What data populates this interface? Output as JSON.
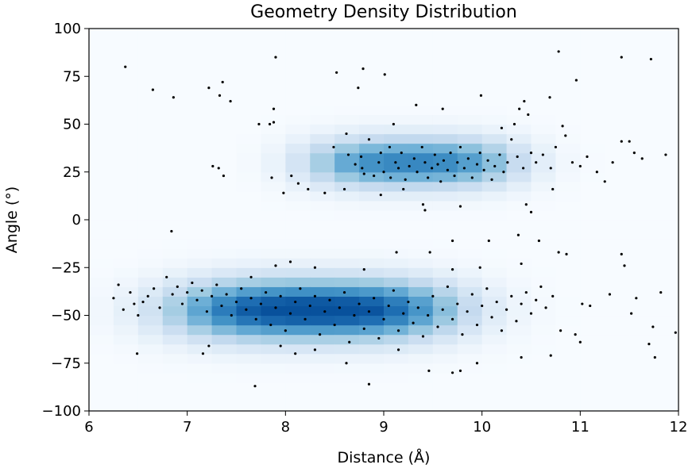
{
  "chart_data": {
    "type": "heatmap",
    "title": "Geometry Density Distribution",
    "xlabel": "Distance (Å)",
    "ylabel": "Angle (°)",
    "xlim": [
      6,
      12
    ],
    "ylim": [
      -100,
      100
    ],
    "x_ticks": [
      6,
      7,
      8,
      9,
      10,
      11,
      12
    ],
    "y_ticks": [
      -100,
      -75,
      -50,
      -25,
      0,
      25,
      50,
      75,
      100
    ],
    "x_tick_labels": [
      "6",
      "7",
      "8",
      "9",
      "10",
      "11",
      "12"
    ],
    "y_tick_labels": [
      "−100",
      "−75",
      "−50",
      "−25",
      "0",
      "25",
      "50",
      "75",
      "100"
    ],
    "grid": false,
    "colormap": "Blues",
    "point_color": "#000000",
    "density_clusters": [
      {
        "center": [
          8.3,
          -47
        ],
        "spread": [
          1.15,
          11
        ],
        "weight": 1.0
      },
      {
        "center": [
          9.3,
          30
        ],
        "spread": [
          0.85,
          9
        ],
        "weight": 0.75
      }
    ],
    "points": [
      [
        6.37,
        80
      ],
      [
        6.65,
        68
      ],
      [
        6.86,
        64
      ],
      [
        7.22,
        69
      ],
      [
        7.33,
        65
      ],
      [
        7.36,
        72
      ],
      [
        7.44,
        62
      ],
      [
        7.9,
        85
      ],
      [
        8.52,
        77
      ],
      [
        8.79,
        79
      ],
      [
        9.01,
        76
      ],
      [
        8.74,
        69
      ],
      [
        10.78,
        88
      ],
      [
        10.96,
        73
      ],
      [
        11.42,
        85
      ],
      [
        11.72,
        84
      ],
      [
        7.73,
        50
      ],
      [
        7.84,
        50
      ],
      [
        7.88,
        51
      ],
      [
        7.88,
        58
      ],
      [
        7.26,
        28
      ],
      [
        7.32,
        27
      ],
      [
        7.37,
        23
      ],
      [
        7.86,
        22
      ],
      [
        7.98,
        14
      ],
      [
        8.06,
        23
      ],
      [
        8.13,
        19
      ],
      [
        8.23,
        16
      ],
      [
        8.4,
        14
      ],
      [
        8.6,
        16
      ],
      [
        8.49,
        38
      ],
      [
        8.62,
        45
      ],
      [
        8.85,
        42
      ],
      [
        8.9,
        23
      ],
      [
        8.64,
        34
      ],
      [
        8.71,
        29
      ],
      [
        8.77,
        33
      ],
      [
        8.78,
        27
      ],
      [
        8.8,
        24
      ],
      [
        8.95,
        30
      ],
      [
        8.97,
        35
      ],
      [
        9.0,
        25
      ],
      [
        9.06,
        38
      ],
      [
        9.07,
        22
      ],
      [
        9.12,
        30
      ],
      [
        9.15,
        27
      ],
      [
        9.18,
        35
      ],
      [
        9.22,
        21
      ],
      [
        9.26,
        28
      ],
      [
        9.31,
        32
      ],
      [
        9.34,
        25
      ],
      [
        9.39,
        38
      ],
      [
        9.42,
        30
      ],
      [
        9.45,
        22
      ],
      [
        9.49,
        27
      ],
      [
        9.52,
        34
      ],
      [
        9.55,
        29
      ],
      [
        9.58,
        20
      ],
      [
        9.61,
        31
      ],
      [
        9.65,
        26
      ],
      [
        9.68,
        35
      ],
      [
        9.72,
        23
      ],
      [
        9.75,
        30
      ],
      [
        9.78,
        38
      ],
      [
        9.82,
        27
      ],
      [
        9.86,
        32
      ],
      [
        9.9,
        22
      ],
      [
        9.95,
        29
      ],
      [
        9.98,
        35
      ],
      [
        10.02,
        26
      ],
      [
        10.06,
        31
      ],
      [
        10.1,
        21
      ],
      [
        10.13,
        28
      ],
      [
        10.18,
        34
      ],
      [
        10.22,
        25
      ],
      [
        10.26,
        30
      ],
      [
        10.3,
        42
      ],
      [
        10.36,
        33
      ],
      [
        10.42,
        27
      ],
      [
        10.47,
        55
      ],
      [
        10.5,
        35
      ],
      [
        10.55,
        30
      ],
      [
        10.62,
        34
      ],
      [
        10.7,
        27
      ],
      [
        10.75,
        38
      ],
      [
        10.82,
        49
      ],
      [
        10.85,
        44
      ],
      [
        10.92,
        30
      ],
      [
        11.0,
        28
      ],
      [
        11.07,
        33
      ],
      [
        11.17,
        25
      ],
      [
        11.25,
        20
      ],
      [
        11.33,
        30
      ],
      [
        11.42,
        41
      ],
      [
        11.5,
        41
      ],
      [
        11.55,
        35
      ],
      [
        11.63,
        32
      ],
      [
        11.87,
        34
      ],
      [
        9.1,
        50
      ],
      [
        9.33,
        60
      ],
      [
        9.6,
        58
      ],
      [
        9.99,
        65
      ],
      [
        10.2,
        48
      ],
      [
        10.33,
        50
      ],
      [
        10.38,
        58
      ],
      [
        10.43,
        62
      ],
      [
        10.69,
        64
      ],
      [
        8.97,
        13
      ],
      [
        9.2,
        16
      ],
      [
        9.4,
        8
      ],
      [
        9.42,
        5
      ],
      [
        9.78,
        7
      ],
      [
        10.45,
        8
      ],
      [
        10.5,
        4
      ],
      [
        10.72,
        16
      ],
      [
        6.25,
        -41
      ],
      [
        6.3,
        -34
      ],
      [
        6.35,
        -47
      ],
      [
        6.42,
        -38
      ],
      [
        6.46,
        -44
      ],
      [
        6.5,
        -50
      ],
      [
        6.55,
        -43
      ],
      [
        6.6,
        -40
      ],
      [
        6.66,
        -36
      ],
      [
        6.72,
        -46
      ],
      [
        6.79,
        -30
      ],
      [
        6.85,
        -39
      ],
      [
        6.9,
        -35
      ],
      [
        6.95,
        -44
      ],
      [
        7.0,
        -38
      ],
      [
        7.05,
        -33
      ],
      [
        7.1,
        -42
      ],
      [
        7.15,
        -37
      ],
      [
        7.2,
        -48
      ],
      [
        7.25,
        -40
      ],
      [
        7.3,
        -34
      ],
      [
        7.35,
        -45
      ],
      [
        7.4,
        -39
      ],
      [
        7.45,
        -50
      ],
      [
        7.5,
        -43
      ],
      [
        7.55,
        -36
      ],
      [
        7.6,
        -47
      ],
      [
        7.65,
        -41
      ],
      [
        7.7,
        -52
      ],
      [
        7.75,
        -44
      ],
      [
        7.8,
        -38
      ],
      [
        7.85,
        -55
      ],
      [
        7.9,
        -46
      ],
      [
        7.95,
        -40
      ],
      [
        8.0,
        -58
      ],
      [
        8.05,
        -49
      ],
      [
        8.1,
        -43
      ],
      [
        8.15,
        -36
      ],
      [
        8.2,
        -52
      ],
      [
        8.25,
        -45
      ],
      [
        8.3,
        -40
      ],
      [
        8.35,
        -60
      ],
      [
        8.4,
        -48
      ],
      [
        8.45,
        -42
      ],
      [
        8.5,
        -55
      ],
      [
        8.55,
        -46
      ],
      [
        8.6,
        -38
      ],
      [
        8.65,
        -64
      ],
      [
        8.7,
        -50
      ],
      [
        8.75,
        -44
      ],
      [
        8.8,
        -57
      ],
      [
        8.85,
        -48
      ],
      [
        8.9,
        -41
      ],
      [
        8.95,
        -62
      ],
      [
        9.0,
        -52
      ],
      [
        9.05,
        -45
      ],
      [
        9.1,
        -37
      ],
      [
        9.15,
        -58
      ],
      [
        9.2,
        -49
      ],
      [
        9.25,
        -43
      ],
      [
        9.3,
        -54
      ],
      [
        9.35,
        -46
      ],
      [
        9.4,
        -61
      ],
      [
        9.45,
        -50
      ],
      [
        9.5,
        -40
      ],
      [
        9.55,
        -56
      ],
      [
        9.6,
        -47
      ],
      [
        9.65,
        -35
      ],
      [
        9.7,
        -52
      ],
      [
        9.75,
        -44
      ],
      [
        9.8,
        -60
      ],
      [
        9.85,
        -48
      ],
      [
        9.9,
        -39
      ],
      [
        9.95,
        -55
      ],
      [
        10.0,
        -45
      ],
      [
        10.05,
        -36
      ],
      [
        10.1,
        -51
      ],
      [
        10.15,
        -43
      ],
      [
        10.2,
        -58
      ],
      [
        10.25,
        -47
      ],
      [
        10.3,
        -40
      ],
      [
        10.35,
        -53
      ],
      [
        10.4,
        -44
      ],
      [
        10.45,
        -38
      ],
      [
        10.5,
        -49
      ],
      [
        10.55,
        -42
      ],
      [
        10.6,
        -35
      ],
      [
        10.65,
        -46
      ],
      [
        10.72,
        -40
      ],
      [
        10.8,
        -58
      ],
      [
        10.95,
        -60
      ],
      [
        11.02,
        -44
      ],
      [
        11.1,
        -45
      ],
      [
        11.3,
        -39
      ],
      [
        11.42,
        -18
      ],
      [
        11.45,
        -24
      ],
      [
        11.52,
        -49
      ],
      [
        11.57,
        -41
      ],
      [
        11.7,
        -65
      ],
      [
        11.74,
        -56
      ],
      [
        11.76,
        -72
      ],
      [
        11.82,
        -38
      ],
      [
        11.97,
        -59
      ],
      [
        6.49,
        -70
      ],
      [
        6.84,
        -6
      ],
      [
        7.16,
        -70
      ],
      [
        7.22,
        -66
      ],
      [
        7.69,
        -87
      ],
      [
        7.95,
        -66
      ],
      [
        8.1,
        -70
      ],
      [
        8.3,
        -68
      ],
      [
        8.62,
        -75
      ],
      [
        8.85,
        -86
      ],
      [
        9.15,
        -68
      ],
      [
        9.46,
        -79
      ],
      [
        9.7,
        -80
      ],
      [
        9.78,
        -79
      ],
      [
        9.95,
        -75
      ],
      [
        10.4,
        -72
      ],
      [
        10.7,
        -71
      ],
      [
        11.0,
        -64
      ],
      [
        8.8,
        -26
      ],
      [
        9.13,
        -17
      ],
      [
        9.7,
        -11
      ],
      [
        9.98,
        -25
      ],
      [
        10.07,
        -11
      ],
      [
        10.37,
        -8
      ],
      [
        10.4,
        -23
      ],
      [
        10.58,
        -11
      ],
      [
        10.78,
        -17
      ],
      [
        10.86,
        -18
      ],
      [
        9.47,
        -17
      ],
      [
        9.7,
        -26
      ],
      [
        7.65,
        -30
      ],
      [
        7.9,
        -24
      ],
      [
        8.05,
        -22
      ],
      [
        8.3,
        -25
      ]
    ]
  }
}
